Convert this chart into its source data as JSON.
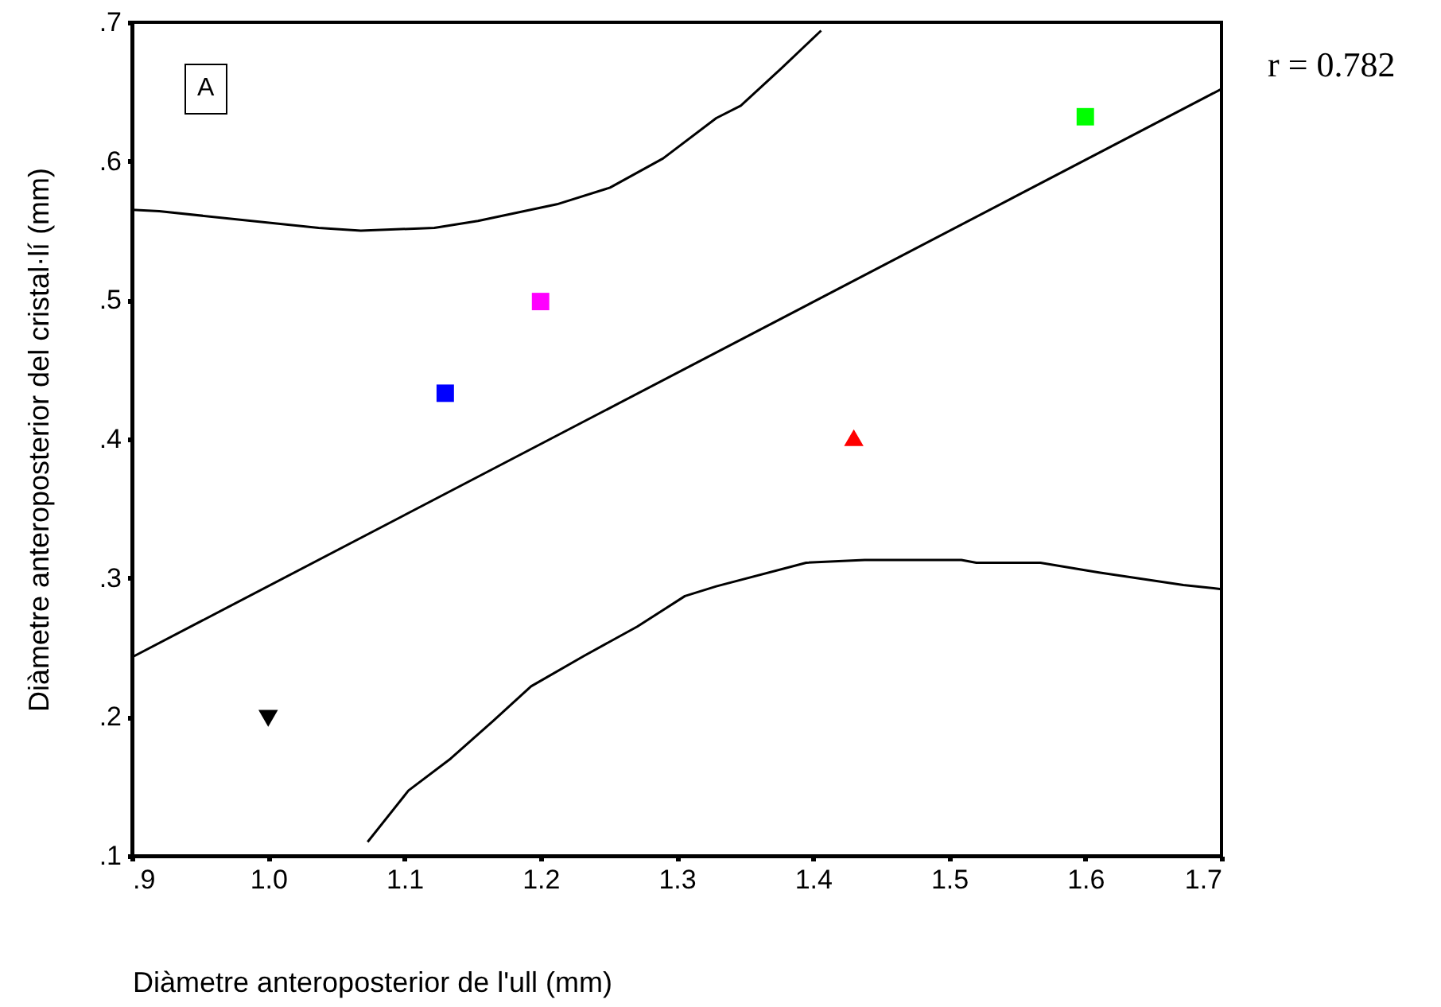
{
  "chart_data": {
    "type": "scatter",
    "xlabel": "Diàmetre anteroposterior de l'ull (mm)",
    "ylabel": "Diàmetre anteroposterior del cristal·lí (mm)",
    "annotations": [
      "A",
      "r = 0.782"
    ],
    "xlim": [
      0.9,
      1.7
    ],
    "xticks": [
      {
        "value": 0.9,
        "label": ".9"
      },
      {
        "value": 1.0,
        "label": "1.0"
      },
      {
        "value": 1.1,
        "label": "1.1"
      },
      {
        "value": 1.2,
        "label": "1.2"
      },
      {
        "value": 1.3,
        "label": "1.3"
      },
      {
        "value": 1.4,
        "label": "1.4"
      },
      {
        "value": 1.5,
        "label": "1.5"
      },
      {
        "value": 1.6,
        "label": "1.6"
      },
      {
        "value": 1.7,
        "label": "1.7"
      }
    ],
    "ylim": [
      0.1,
      0.7
    ],
    "yticks": [
      {
        "value": 0.1,
        "label": ".1"
      },
      {
        "value": 0.2,
        "label": ".2"
      },
      {
        "value": 0.3,
        "label": ".3"
      },
      {
        "value": 0.4,
        "label": ".4"
      },
      {
        "value": 0.5,
        "label": ".5"
      },
      {
        "value": 0.6,
        "label": ".6"
      },
      {
        "value": 0.7,
        "label": ".7"
      }
    ],
    "series": [
      {
        "marker": "square",
        "color": "#0000ff",
        "x": [
          1.13
        ],
        "values": [
          0.433
        ]
      },
      {
        "marker": "square",
        "color": "#ff00ff",
        "x": [
          1.2
        ],
        "values": [
          0.499
        ]
      },
      {
        "marker": "square",
        "color": "#00ff00",
        "x": [
          1.6
        ],
        "values": [
          0.632
        ]
      },
      {
        "marker": "triangle",
        "color": "#ff0000",
        "x": [
          1.43
        ],
        "values": [
          0.401
        ]
      },
      {
        "marker": "triangle-down",
        "color": "#000000",
        "x": [
          1.0
        ],
        "values": [
          0.199
        ]
      },
      {
        "type": "line",
        "color": "#000000",
        "line_style": "solid",
        "x": [
          0.9,
          1.7
        ],
        "values": [
          0.243,
          0.652
        ]
      },
      {
        "type": "line",
        "color": "#000000",
        "line_style": "solid",
        "x": [
          0.9,
          0.92,
          1.037,
          1.068,
          1.122,
          1.154,
          1.212,
          1.251,
          1.29,
          1.329,
          1.347,
          1.377,
          1.406
        ],
        "values": [
          0.565,
          0.564,
          0.552,
          0.55,
          0.552,
          0.557,
          0.569,
          0.581,
          0.602,
          0.631,
          0.64,
          0.667,
          0.694
        ]
      },
      {
        "type": "line",
        "color": "#000000",
        "line_style": "solid",
        "x": [
          1.073,
          1.103,
          1.134,
          1.165,
          1.193,
          1.232,
          1.271,
          1.306,
          1.329,
          1.395,
          1.438,
          1.509,
          1.52,
          1.567,
          1.61,
          1.672,
          1.7
        ],
        "values": [
          0.11,
          0.147,
          0.17,
          0.197,
          0.222,
          0.244,
          0.265,
          0.287,
          0.294,
          0.311,
          0.313,
          0.313,
          0.311,
          0.311,
          0.304,
          0.295,
          0.292
        ]
      }
    ]
  }
}
